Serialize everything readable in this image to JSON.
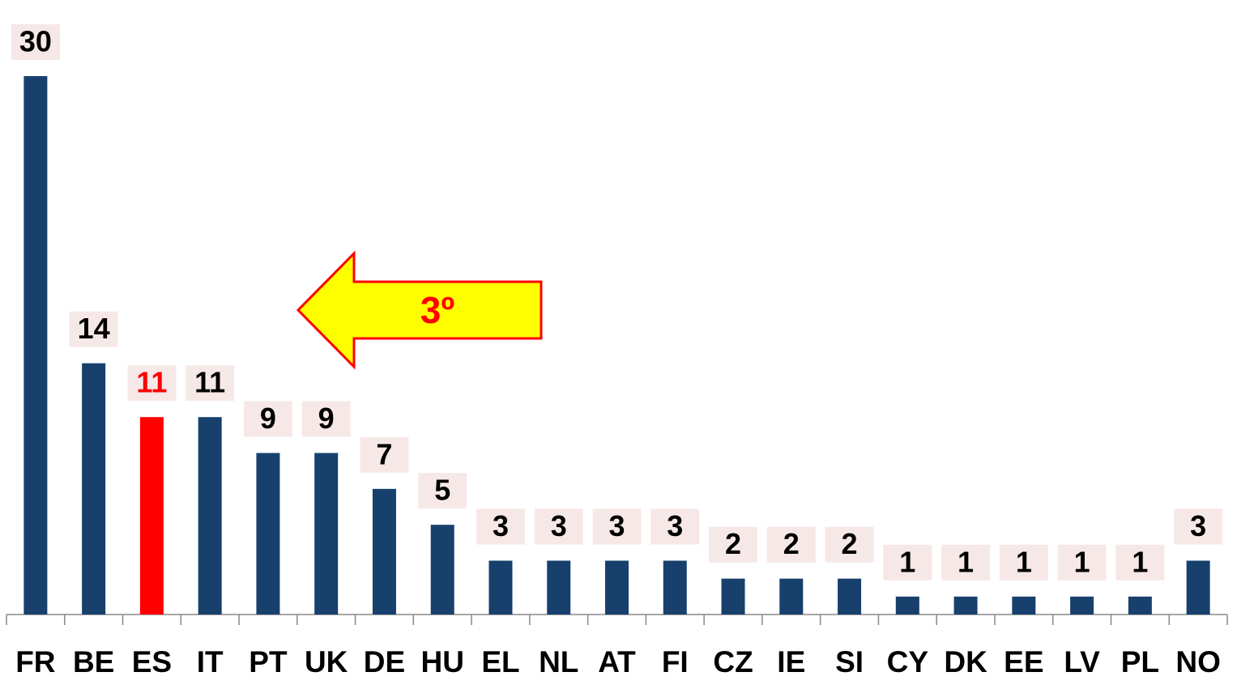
{
  "chart_data": {
    "type": "bar",
    "categories": [
      "FR",
      "BE",
      "ES",
      "IT",
      "PT",
      "UK",
      "DE",
      "HU",
      "EL",
      "NL",
      "AT",
      "FI",
      "CZ",
      "IE",
      "SI",
      "CY",
      "DK",
      "EE",
      "LV",
      "PL",
      "NO"
    ],
    "values": [
      30,
      14,
      11,
      11,
      9,
      9,
      7,
      5,
      3,
      3,
      3,
      3,
      2,
      2,
      2,
      1,
      1,
      1,
      1,
      1,
      3
    ],
    "colors": [
      "#17406d",
      "#17406d",
      "#ff0000",
      "#17406d",
      "#17406d",
      "#17406d",
      "#17406d",
      "#17406d",
      "#17406d",
      "#17406d",
      "#17406d",
      "#17406d",
      "#17406d",
      "#17406d",
      "#17406d",
      "#17406d",
      "#17406d",
      "#17406d",
      "#17406d",
      "#17406d",
      "#17406d"
    ],
    "value_label_colors": [
      "#000000",
      "#000000",
      "#ff0000",
      "#000000",
      "#000000",
      "#000000",
      "#000000",
      "#000000",
      "#000000",
      "#000000",
      "#000000",
      "#000000",
      "#000000",
      "#000000",
      "#000000",
      "#000000",
      "#000000",
      "#000000",
      "#000000",
      "#000000",
      "#000000"
    ],
    "ylim": [
      0,
      34
    ],
    "annotations": [
      {
        "text": "3º"
      }
    ]
  }
}
